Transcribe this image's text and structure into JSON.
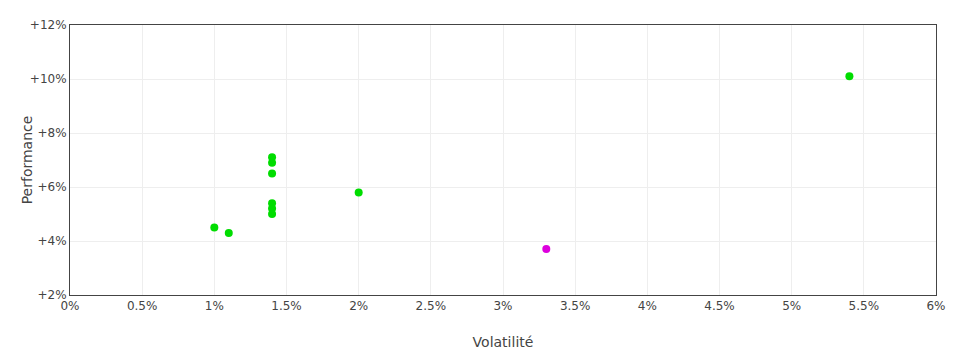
{
  "chart_data": {
    "type": "scatter",
    "xlabel": "Volatilité",
    "ylabel": "Performance",
    "xlim": [
      0.0,
      0.06
    ],
    "ylim": [
      0.02,
      0.12
    ],
    "xticks": [
      {
        "value": 0.0,
        "label": "0%"
      },
      {
        "value": 0.005,
        "label": "0.5%"
      },
      {
        "value": 0.01,
        "label": "1%"
      },
      {
        "value": 0.015,
        "label": "1.5%"
      },
      {
        "value": 0.02,
        "label": "2%"
      },
      {
        "value": 0.025,
        "label": "2.5%"
      },
      {
        "value": 0.03,
        "label": "3%"
      },
      {
        "value": 0.035,
        "label": "3.5%"
      },
      {
        "value": 0.04,
        "label": "4%"
      },
      {
        "value": 0.045,
        "label": "4.5%"
      },
      {
        "value": 0.05,
        "label": "5%"
      },
      {
        "value": 0.055,
        "label": "5.5%"
      },
      {
        "value": 0.06,
        "label": "6%"
      }
    ],
    "yticks": [
      {
        "value": 0.02,
        "label": "+2%"
      },
      {
        "value": 0.04,
        "label": "+4%"
      },
      {
        "value": 0.06,
        "label": "+6%"
      },
      {
        "value": 0.08,
        "label": "+8%"
      },
      {
        "value": 0.1,
        "label": "+10%"
      },
      {
        "value": 0.12,
        "label": "+12%"
      }
    ],
    "grid": true,
    "series": [
      {
        "color": "#00dd00",
        "x": [
          0.01,
          0.011,
          0.014,
          0.014,
          0.014,
          0.014,
          0.014,
          0.014,
          0.02,
          0.054
        ],
        "values": [
          0.045,
          0.043,
          0.069,
          0.071,
          0.065,
          0.054,
          0.052,
          0.05,
          0.058,
          0.101
        ]
      },
      {
        "color": "#dd00dd",
        "x": [
          0.033
        ],
        "values": [
          0.037
        ]
      }
    ]
  }
}
